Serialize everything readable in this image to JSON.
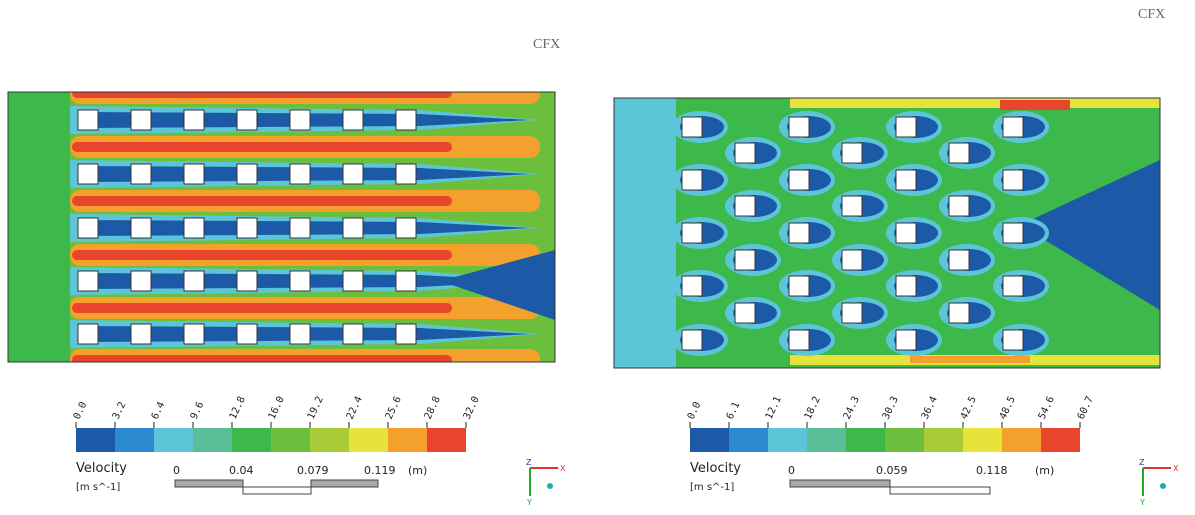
{
  "panels": [
    {
      "logo": "CFX",
      "legend": {
        "title": "Velocity",
        "unit": "[m s^-1]",
        "ticks": [
          "0.0",
          "3.2",
          "6.4",
          "9.6",
          "12.8",
          "16.0",
          "19.2",
          "22.4",
          "25.6",
          "28.8",
          "32.0"
        ],
        "colors": [
          "#1c5aa8",
          "#2b8ad0",
          "#5cc6d8",
          "#5abf98",
          "#3db84a",
          "#6cbf3c",
          "#a8cc38",
          "#e6e43a",
          "#f4a02c",
          "#e8452c"
        ]
      },
      "scale": {
        "labels": [
          "0",
          "0.04",
          "0.079",
          "0.119"
        ],
        "unit": "(m)"
      },
      "axes": {
        "z": "Z",
        "x": "X",
        "y": "Y"
      }
    },
    {
      "logo": "CFX",
      "legend": {
        "title": "Velocity",
        "unit": "[m s^-1]",
        "ticks": [
          "0.0",
          "6.1",
          "12.1",
          "18.2",
          "24.3",
          "30.3",
          "36.4",
          "42.5",
          "48.5",
          "54.6",
          "60.7"
        ],
        "colors": [
          "#1c5aa8",
          "#2b8ad0",
          "#5cc6d8",
          "#5abf98",
          "#3db84a",
          "#6cbf3c",
          "#a8cc38",
          "#e6e43a",
          "#f4a02c",
          "#e8452c"
        ]
      },
      "scale": {
        "labels": [
          "0",
          "0.059",
          "0.118"
        ],
        "unit": "(m)"
      },
      "axes": {
        "z": "Z",
        "x": "X",
        "y": "Y"
      }
    }
  ]
}
